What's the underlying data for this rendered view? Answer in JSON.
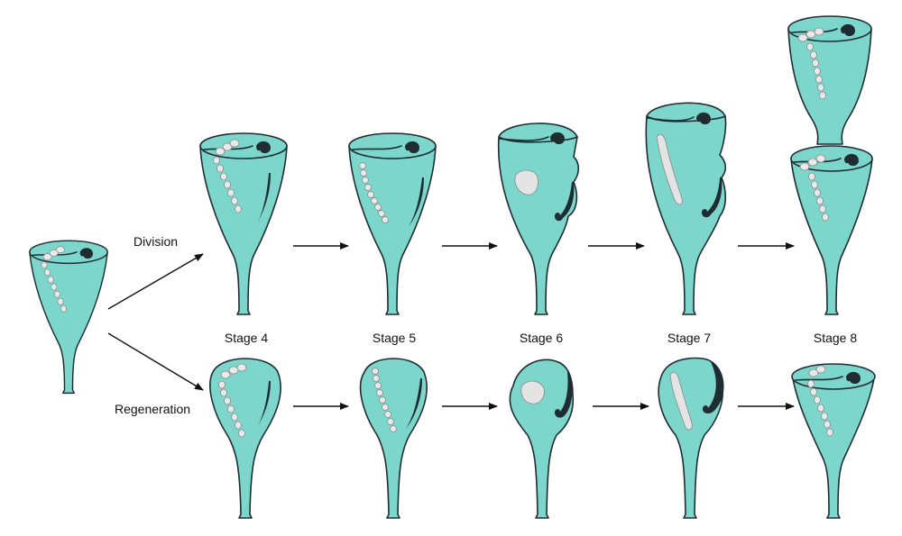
{
  "labels": {
    "division": "Division",
    "regeneration": "Regeneration"
  },
  "stages": [
    "Stage 4",
    "Stage 5",
    "Stage 6",
    "Stage 7",
    "Stage 8"
  ],
  "colors": {
    "cell_fill": "#7dd6cb",
    "outline": "#1f2d33",
    "macronucleus": "#e9e9e9"
  }
}
